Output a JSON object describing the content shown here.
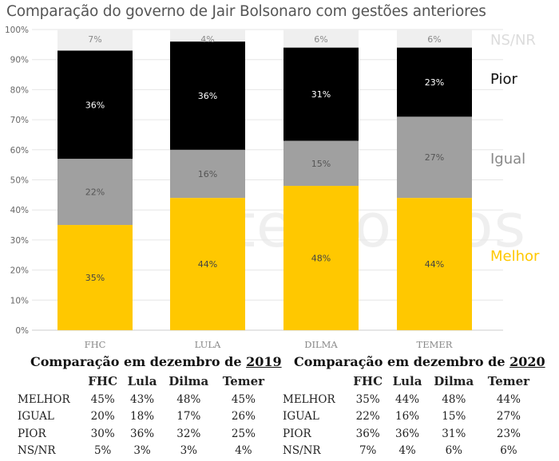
{
  "title": "Comparação do governo de Jair Bolsonaro com gestões anteriores",
  "watermark": "temontos",
  "colors": {
    "melhor": "#ffc800",
    "igual": "#a0a0a0",
    "pior": "#000000",
    "nsnr": "#efefef"
  },
  "chart_data": {
    "type": "bar",
    "stacked": true,
    "categories": [
      "FHC",
      "LULA",
      "DILMA",
      "TEMER"
    ],
    "series": [
      {
        "name": "Melhor",
        "values": [
          35,
          44,
          48,
          44
        ]
      },
      {
        "name": "Igual",
        "values": [
          22,
          16,
          15,
          27
        ]
      },
      {
        "name": "Pior",
        "values": [
          36,
          36,
          31,
          23
        ]
      },
      {
        "name": "NS/NR",
        "values": [
          7,
          4,
          6,
          6
        ]
      }
    ],
    "ylim": [
      0,
      100
    ],
    "yticks": [
      "0%",
      "10%",
      "20%",
      "30%",
      "40%",
      "50%",
      "60%",
      "70%",
      "80%",
      "90%",
      "100%"
    ],
    "grid": true,
    "legend": "right"
  },
  "tables": [
    {
      "heading": "Comparação em dezembro de ",
      "year": "2019",
      "columns": [
        "FHC",
        "Lula",
        "Dilma",
        "Temer"
      ],
      "rows": [
        {
          "label": "MELHOR",
          "values": [
            "45%",
            "43%",
            "48%",
            "45%"
          ]
        },
        {
          "label": "IGUAL",
          "values": [
            "20%",
            "18%",
            "17%",
            "26%"
          ]
        },
        {
          "label": "PIOR",
          "values": [
            "30%",
            "36%",
            "32%",
            "25%"
          ]
        },
        {
          "label": "NS/NR",
          "values": [
            "5%",
            "3%",
            "3%",
            "4%"
          ]
        }
      ]
    },
    {
      "heading": "Comparação em dezembro de ",
      "year": "2020",
      "columns": [
        "FHC",
        "Lula",
        "Dilma",
        "Temer"
      ],
      "rows": [
        {
          "label": "MELHOR",
          "values": [
            "35%",
            "44%",
            "48%",
            "44%"
          ]
        },
        {
          "label": "IGUAL",
          "values": [
            "22%",
            "16%",
            "15%",
            "27%"
          ]
        },
        {
          "label": "PIOR",
          "values": [
            "36%",
            "36%",
            "31%",
            "23%"
          ]
        },
        {
          "label": "NS/NR",
          "values": [
            "7%",
            "4%",
            "6%",
            "6%"
          ]
        }
      ]
    }
  ]
}
